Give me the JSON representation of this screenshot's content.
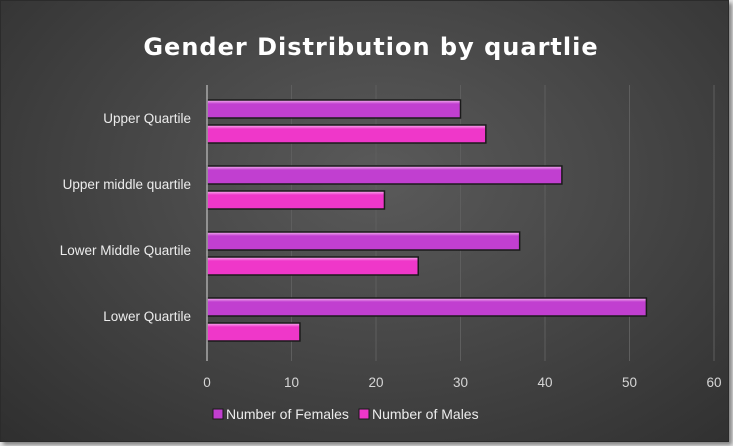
{
  "chart_data": {
    "type": "bar",
    "orientation": "horizontal",
    "title": "Gender Distribution by quartlie",
    "categories": [
      "Upper Quartile",
      "Upper middle quartile",
      "Lower Middle Quartile",
      "Lower Quartile"
    ],
    "series": [
      {
        "name": "Number of Females",
        "values": [
          30,
          42,
          37,
          52
        ],
        "color": "#c13fd0"
      },
      {
        "name": "Number of Males",
        "values": [
          33,
          21,
          25,
          11
        ],
        "color": "#ef37c9"
      }
    ],
    "xlim": [
      0,
      60
    ],
    "xticks": [
      0,
      10,
      20,
      30,
      40,
      50,
      60
    ],
    "xlabel": "",
    "ylabel": "",
    "grid": true,
    "legend_position": "bottom",
    "colors": {
      "background": "#474747",
      "bar_outline": "#1a1a1a"
    }
  }
}
